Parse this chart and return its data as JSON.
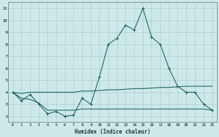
{
  "xlabel": "Humidex (Indice chaleur)",
  "ylabel": "",
  "bg_color": "#cce8e8",
  "grid_color": "#aacccc",
  "line_color": "#1a6060",
  "xlim": [
    -0.5,
    23.5
  ],
  "ylim": [
    1.5,
    11.5
  ],
  "yticks": [
    2,
    3,
    4,
    5,
    6,
    7,
    8,
    9,
    10,
    11
  ],
  "xticks": [
    0,
    1,
    2,
    3,
    4,
    5,
    6,
    7,
    8,
    9,
    10,
    11,
    12,
    13,
    14,
    15,
    16,
    17,
    18,
    19,
    20,
    21,
    22,
    23
  ],
  "line1_x": [
    0,
    1,
    2,
    3,
    4,
    5,
    6,
    7,
    8,
    9,
    10,
    11,
    12,
    13,
    14,
    15,
    16,
    17,
    18,
    19,
    20,
    21,
    22,
    23
  ],
  "line1_y": [
    4.0,
    3.3,
    3.8,
    3.0,
    2.2,
    2.4,
    2.0,
    2.1,
    3.5,
    3.0,
    5.3,
    8.0,
    8.5,
    9.6,
    9.2,
    11.0,
    8.6,
    8.0,
    6.0,
    4.5,
    4.0,
    4.0,
    3.0,
    2.5
  ],
  "line2_x": [
    0,
    1,
    2,
    3,
    4,
    5,
    6,
    7,
    8,
    9,
    10,
    11,
    12,
    13,
    14,
    15,
    16,
    17,
    18,
    19,
    20,
    21,
    22,
    23
  ],
  "line2_y": [
    4.0,
    3.9,
    4.0,
    4.0,
    4.0,
    4.0,
    4.0,
    4.0,
    4.1,
    4.1,
    4.15,
    4.2,
    4.2,
    4.25,
    4.3,
    4.3,
    4.35,
    4.4,
    4.4,
    4.45,
    4.5,
    4.5,
    4.5,
    4.5
  ],
  "line3_x": [
    0,
    1,
    2,
    3,
    4,
    5,
    6,
    7,
    8,
    9,
    10,
    11,
    12,
    13,
    14,
    15,
    16,
    17,
    18,
    19,
    20,
    21,
    22,
    23
  ],
  "line3_y": [
    4.0,
    3.5,
    3.4,
    3.1,
    2.5,
    2.5,
    2.5,
    2.5,
    2.6,
    2.6,
    2.6,
    2.6,
    2.6,
    2.6,
    2.6,
    2.6,
    2.6,
    2.6,
    2.6,
    2.6,
    2.6,
    2.6,
    2.6,
    2.5
  ]
}
